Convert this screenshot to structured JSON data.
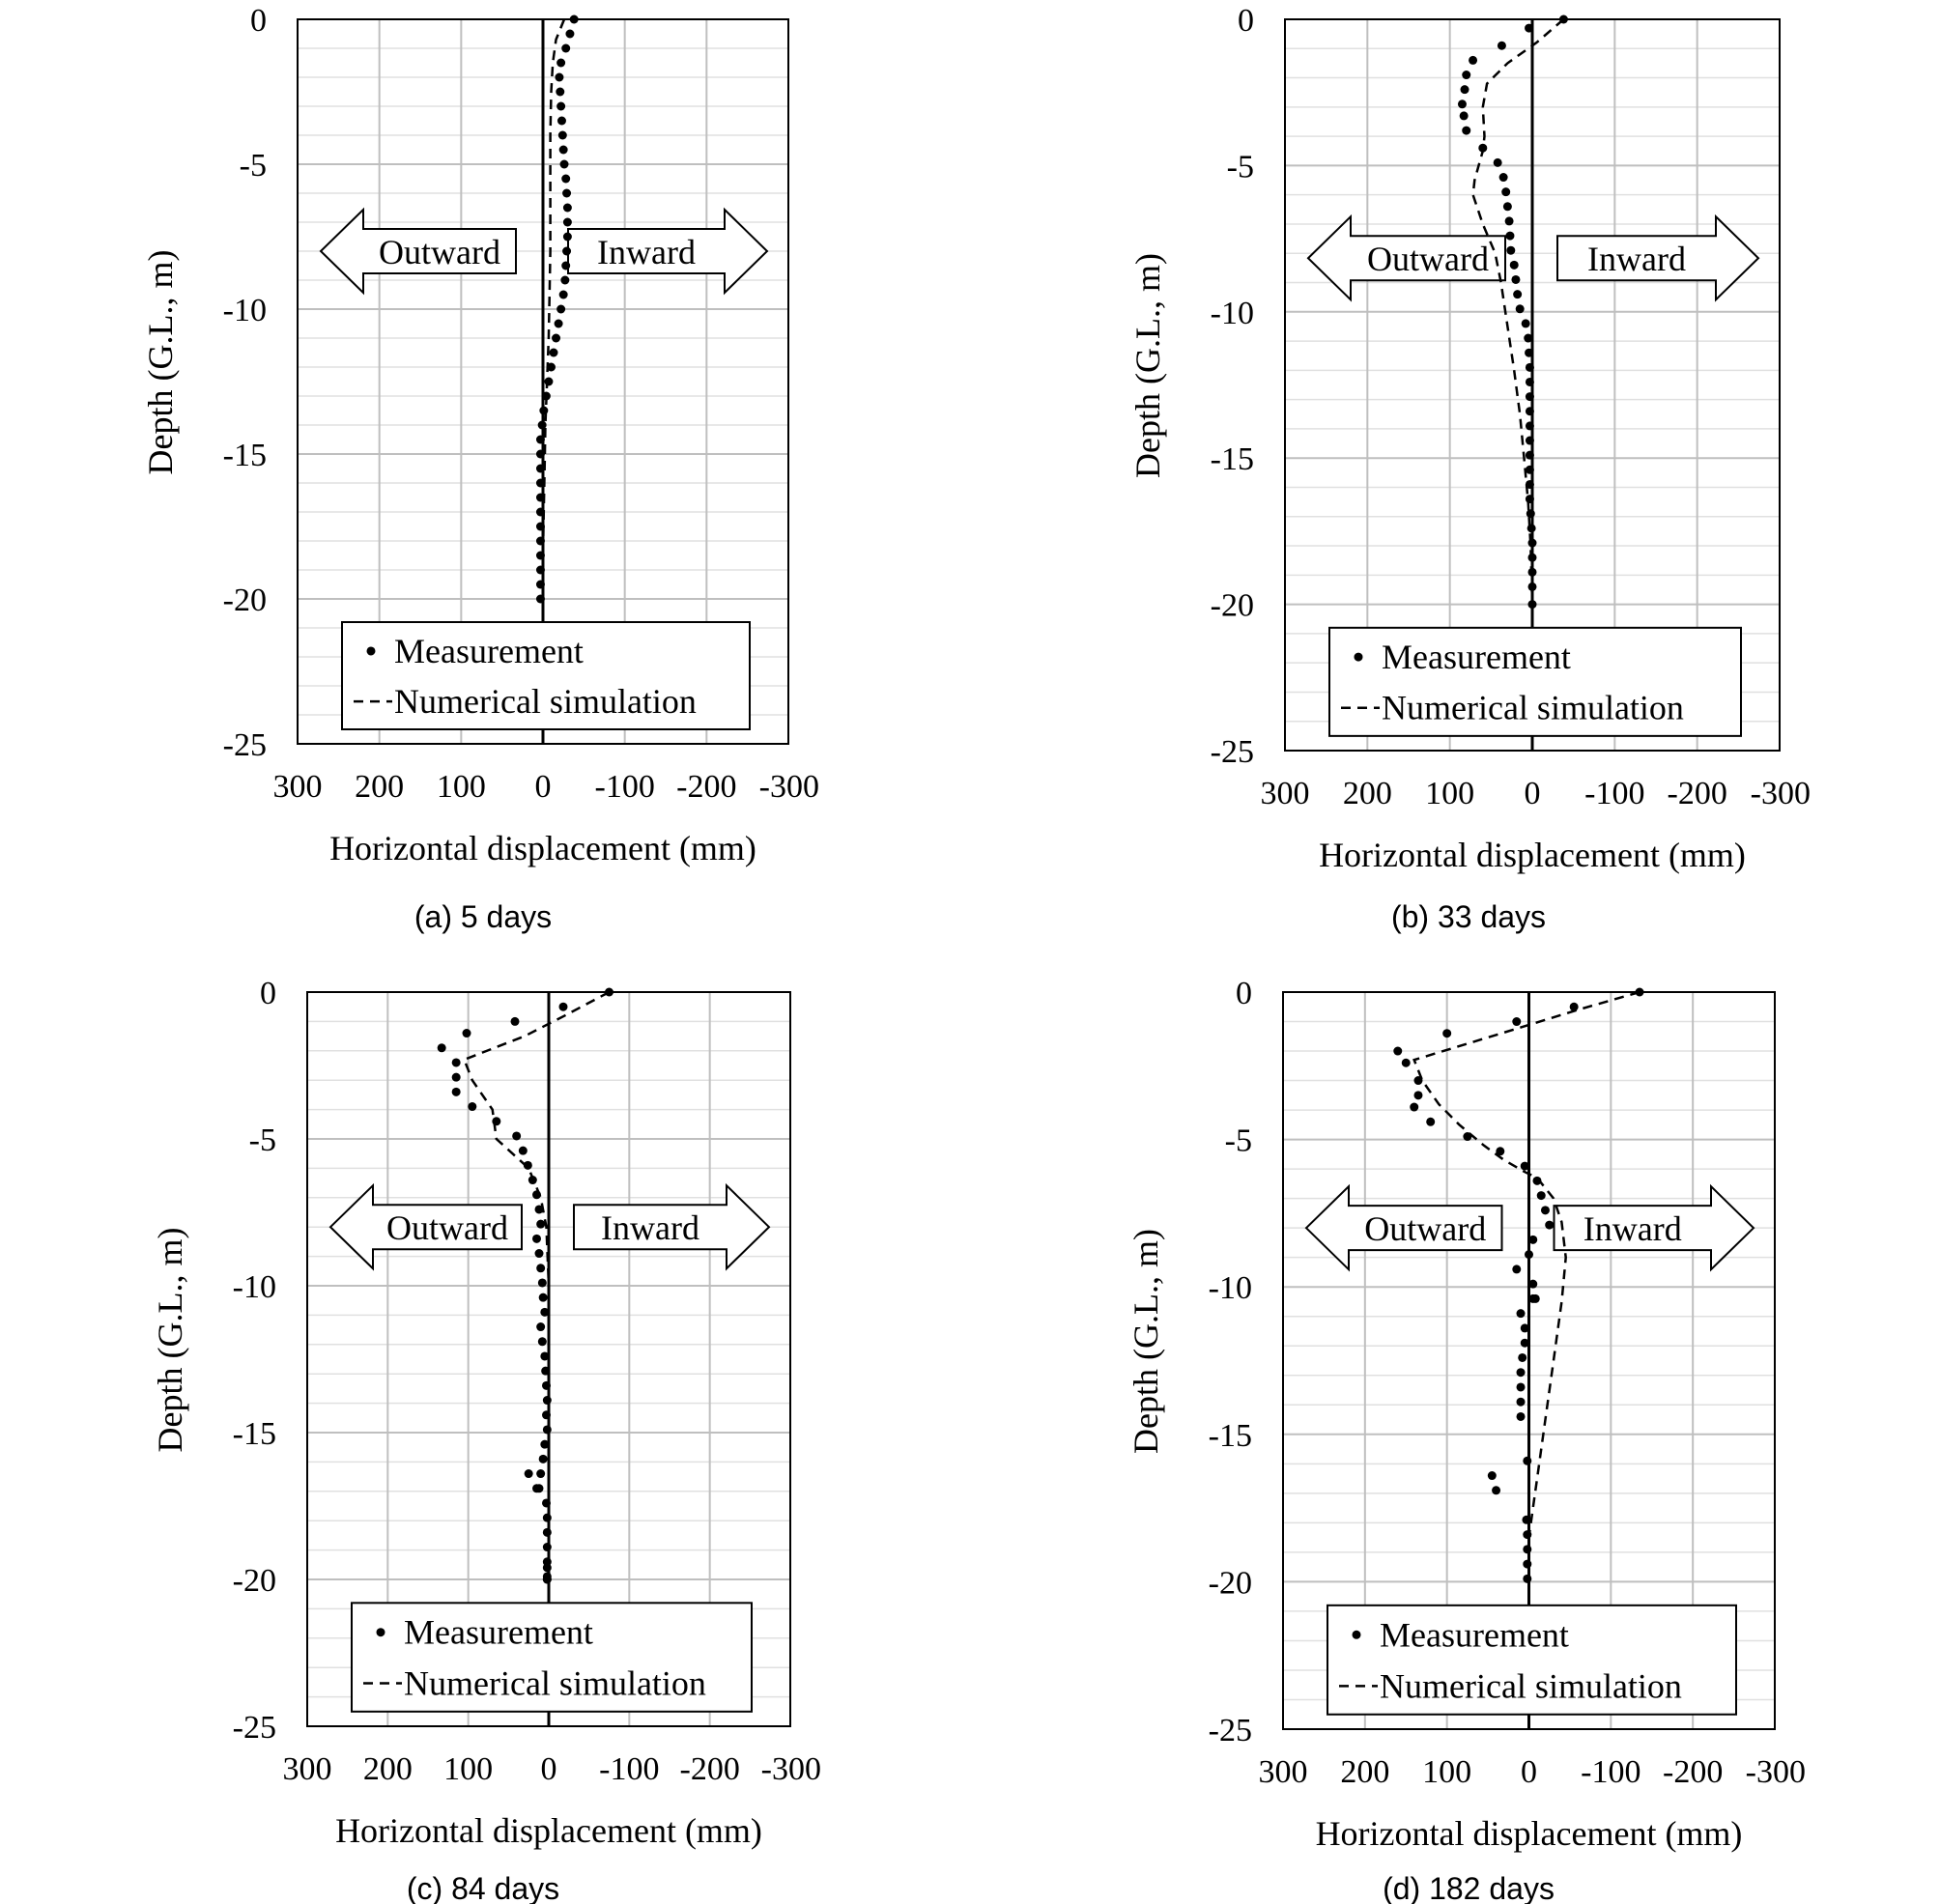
{
  "colors": {
    "measurement": "#000000",
    "simulation": "#000000",
    "grid": "#bfbfbf",
    "minor_grid": "#e0e0e0",
    "axis": "#000000"
  },
  "chart_data": [
    {
      "type": "scatter",
      "caption": "(a) 5 days",
      "xlabel": "Horizontal displacement (mm)",
      "ylabel": "Depth (G.L., m)",
      "xlim": [
        300,
        -300
      ],
      "ylim": [
        -25,
        0
      ],
      "x_ticks": [
        "300",
        "200",
        "100",
        "0",
        "-100",
        "-200",
        "-300"
      ],
      "y_ticks": [
        "0",
        "-5",
        "-10",
        "-15",
        "-20",
        "-25"
      ],
      "grid": true,
      "legend_position": "bottom",
      "annotations": {
        "outward": "Outward",
        "inward": "Inward"
      },
      "series": [
        {
          "name": "Measurement",
          "style": "dots",
          "x": [
            -38,
            -33,
            -28,
            -22,
            -20,
            -21,
            -22,
            -23,
            -24,
            -25,
            -26,
            -28,
            -29,
            -30,
            -30,
            -30,
            -29,
            -28,
            -27,
            -25,
            -22,
            -19,
            -16,
            -13,
            -10,
            -7,
            -4,
            -1,
            1,
            3,
            3,
            3,
            3,
            3,
            3,
            3,
            3,
            3,
            3,
            3,
            3
          ],
          "y": [
            0,
            -0.5,
            -1,
            -1.5,
            -2,
            -2.5,
            -3,
            -3.5,
            -4,
            -4.5,
            -5,
            -5.5,
            -6,
            -6.5,
            -7,
            -7.5,
            -8,
            -8.5,
            -9,
            -9.5,
            -10,
            -10.5,
            -11,
            -11.5,
            -12,
            -12.5,
            -13,
            -13.5,
            -14,
            -14.5,
            -15,
            -15.5,
            -16,
            -16.5,
            -17,
            -17.5,
            -18,
            -18.5,
            -19,
            -19.5,
            -20
          ]
        },
        {
          "name": "Numerical simulation",
          "style": "dashed",
          "x": [
            -26,
            -16,
            -12,
            -10,
            -9,
            -9,
            -9,
            -8,
            -7,
            -5,
            -3,
            -2,
            -1,
            0,
            0
          ],
          "y": [
            0,
            -0.7,
            -1.5,
            -2.5,
            -4,
            -6,
            -8,
            -9.5,
            -11,
            -12.5,
            -14,
            -15.5,
            -17,
            -18.5,
            -20
          ]
        }
      ]
    },
    {
      "type": "scatter",
      "caption": "(b) 33 days",
      "xlabel": "Horizontal displacement (mm)",
      "ylabel": "Depth (G.L., m)",
      "xlim": [
        300,
        -300
      ],
      "ylim": [
        -25,
        0
      ],
      "x_ticks": [
        "300",
        "200",
        "100",
        "0",
        "-100",
        "-200",
        "-300"
      ],
      "y_ticks": [
        "0",
        "-5",
        "-10",
        "-15",
        "-20",
        "-25"
      ],
      "grid": true,
      "legend_position": "bottom",
      "annotations": {
        "outward": "Outward",
        "inward": "Inward"
      },
      "series": [
        {
          "name": "Measurement",
          "style": "dots",
          "x": [
            -38,
            4,
            37,
            72,
            80,
            82,
            85,
            83,
            80,
            60,
            42,
            35,
            32,
            30,
            28,
            27,
            26,
            22,
            20,
            18,
            15,
            8,
            5,
            4,
            3,
            3,
            3,
            3,
            3,
            3,
            3,
            3,
            3,
            3,
            2,
            1,
            0,
            0,
            0,
            0,
            0
          ],
          "y": [
            0,
            -0.3,
            -0.9,
            -1.4,
            -1.9,
            -2.4,
            -2.9,
            -3.3,
            -3.8,
            -4.4,
            -4.9,
            -5.4,
            -5.9,
            -6.4,
            -6.9,
            -7.4,
            -7.9,
            -8.4,
            -8.9,
            -9.4,
            -9.9,
            -10.4,
            -10.9,
            -11.4,
            -11.9,
            -12.4,
            -12.9,
            -13.4,
            -13.9,
            -14.4,
            -14.9,
            -15.4,
            -15.9,
            -16.4,
            -16.9,
            -17.4,
            -17.9,
            -18.4,
            -18.9,
            -19.4,
            -20
          ]
        },
        {
          "name": "Numerical simulation",
          "style": "dashed",
          "x": [
            -38,
            -5,
            30,
            55,
            60,
            58,
            60,
            65,
            70,
            72,
            60,
            45,
            38,
            30,
            22,
            15,
            10,
            5,
            2,
            0
          ],
          "y": [
            0,
            -0.8,
            -1.5,
            -2.2,
            -3,
            -4,
            -4.5,
            -5,
            -5.5,
            -6,
            -7,
            -8,
            -9,
            -10.5,
            -12,
            -13.5,
            -15,
            -16.5,
            -18,
            -20
          ]
        }
      ]
    },
    {
      "type": "scatter",
      "caption": "(c) 84 days",
      "xlabel": "Horizontal displacement (mm)",
      "ylabel": "Depth (G.L., m)",
      "xlim": [
        300,
        -300
      ],
      "ylim": [
        -25,
        0
      ],
      "x_ticks": [
        "300",
        "200",
        "100",
        "0",
        "-100",
        "-200",
        "-300"
      ],
      "y_ticks": [
        "0",
        "-5",
        "-10",
        "-15",
        "-20",
        "-25"
      ],
      "grid": true,
      "legend_position": "bottom",
      "annotations": {
        "outward": "Outward",
        "inward": "Inward"
      },
      "series": [
        {
          "name": "Measurement",
          "style": "dots",
          "x": [
            -75,
            -18,
            42,
            102,
            133,
            115,
            115,
            115,
            95,
            65,
            40,
            32,
            26,
            20,
            15,
            12,
            10,
            15,
            12,
            10,
            8,
            7,
            5,
            10,
            8,
            5,
            4,
            3,
            2,
            3,
            2,
            5,
            7,
            10,
            12,
            25,
            15,
            3,
            2,
            2,
            2,
            2,
            2,
            2,
            2,
            2
          ],
          "y": [
            0,
            -0.5,
            -1,
            -1.4,
            -1.9,
            -2.4,
            -2.9,
            -3.4,
            -3.9,
            -4.4,
            -4.9,
            -5.4,
            -5.9,
            -6.4,
            -6.9,
            -7.4,
            -7.9,
            -8.4,
            -8.9,
            -9.4,
            -9.9,
            -10.4,
            -10.9,
            -11.4,
            -11.9,
            -12.4,
            -12.9,
            -13.4,
            -13.9,
            -14.4,
            -14.9,
            -15.4,
            -15.9,
            -16.4,
            -16.9,
            -16.4,
            -16.9,
            -17.4,
            -17.9,
            -18.4,
            -18.9,
            -19.4,
            -19.9,
            -20,
            -19.6,
            -20
          ]
        },
        {
          "name": "Numerical simulation",
          "style": "dashed",
          "x": [
            -75,
            -20,
            30,
            105,
            95,
            70,
            65,
            45,
            25,
            10,
            3,
            0,
            0,
            0
          ],
          "y": [
            0,
            -0.8,
            -1.5,
            -2.3,
            -3,
            -4,
            -5,
            -5.5,
            -6,
            -7,
            -8,
            -10,
            -15,
            -20
          ]
        }
      ]
    },
    {
      "type": "scatter",
      "caption": "(d) 182 days",
      "xlabel": "Horizontal displacement (mm)",
      "ylabel": "Depth (G.L., m)",
      "xlim": [
        300,
        -300
      ],
      "ylim": [
        -25,
        0
      ],
      "x_ticks": [
        "300",
        "200",
        "100",
        "0",
        "-100",
        "-200",
        "-300"
      ],
      "y_ticks": [
        "0",
        "-5",
        "-10",
        "-15",
        "-20",
        "-25"
      ],
      "grid": true,
      "legend_position": "bottom",
      "annotations": {
        "outward": "Outward",
        "inward": "Inward"
      },
      "series": [
        {
          "name": "Measurement",
          "style": "dots",
          "x": [
            -135,
            -55,
            15,
            100,
            160,
            150,
            135,
            135,
            140,
            120,
            75,
            35,
            5,
            -10,
            -15,
            -20,
            -25,
            -5,
            0,
            -5,
            15,
            -5,
            -8,
            10,
            5,
            5,
            8,
            10,
            10,
            10,
            10,
            45,
            40,
            3,
            2,
            2,
            2,
            2,
            2
          ],
          "y": [
            0,
            -0.5,
            -1,
            -1.4,
            -2,
            -2.4,
            -3,
            -3.5,
            -3.9,
            -4.4,
            -4.9,
            -5.4,
            -5.9,
            -6.4,
            -6.9,
            -7.4,
            -7.9,
            -8.4,
            -8.9,
            -9.9,
            -9.4,
            -10.4,
            -10.4,
            -10.9,
            -11.4,
            -11.9,
            -12.4,
            -12.9,
            -13.4,
            -13.9,
            -14.4,
            -16.4,
            -16.9,
            -17.9,
            -18.4,
            -18.9,
            -19.4,
            -19.9,
            -15.9
          ]
        },
        {
          "name": "Numerical simulation",
          "style": "dashed",
          "x": [
            -135,
            -60,
            10,
            140,
            130,
            110,
            85,
            55,
            30,
            5,
            -10,
            -30,
            -40,
            -45,
            -40,
            -30,
            -20,
            -10,
            -5,
            0,
            0
          ],
          "y": [
            0,
            -0.6,
            -1.2,
            -2.3,
            -3,
            -3.8,
            -4.5,
            -5.2,
            -5.7,
            -6.1,
            -6.3,
            -7,
            -7.8,
            -9,
            -10.5,
            -12.5,
            -14.5,
            -16.5,
            -17.5,
            -18.5,
            -20
          ]
        }
      ]
    }
  ]
}
